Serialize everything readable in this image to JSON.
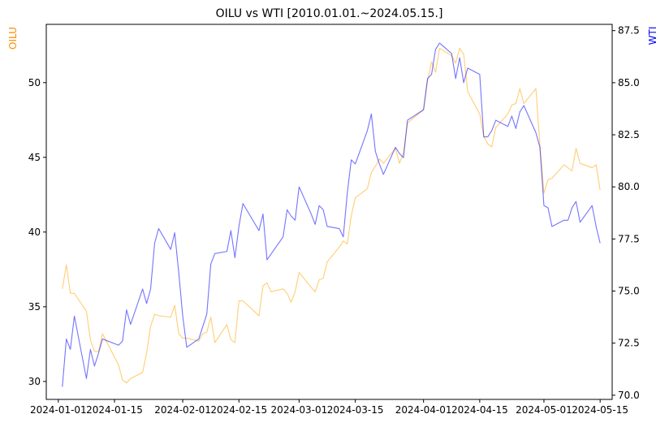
{
  "chart_data": {
    "type": "line",
    "title": "OILU vs WTI [2010.01.01.~2024.05.15.]",
    "x_range": [
      "2023-12-29",
      "2024-05-18"
    ],
    "x_ticks": [
      "2024-01-01",
      "2024-01-15",
      "2024-02-01",
      "2024-02-15",
      "2024-03-01",
      "2024-03-15",
      "2024-04-01",
      "2024-04-15",
      "2024-05-01",
      "2024-05-15"
    ],
    "left_axis": {
      "label": "OILU",
      "color": "#ff8c00",
      "ylim": [
        28.8,
        53.9
      ],
      "ticks": [
        30,
        35,
        40,
        45,
        50
      ]
    },
    "right_axis": {
      "label": "WTI",
      "color": "#0000ff",
      "ylim": [
        69.8,
        87.8
      ],
      "ticks": [
        70.0,
        72.5,
        75.0,
        77.5,
        80.0,
        82.5,
        85.0,
        87.5
      ]
    },
    "series": [
      {
        "name": "OILU",
        "axis": "left",
        "color": "#ffa500",
        "points": [
          [
            "2024-01-02",
            36.2
          ],
          [
            "2024-01-03",
            37.8
          ],
          [
            "2024-01-04",
            35.9
          ],
          [
            "2024-01-05",
            35.9
          ],
          [
            "2024-01-08",
            34.7
          ],
          [
            "2024-01-09",
            32.8
          ],
          [
            "2024-01-10",
            32.0
          ],
          [
            "2024-01-11",
            32.0
          ],
          [
            "2024-01-12",
            33.2
          ],
          [
            "2024-01-16",
            31.1
          ],
          [
            "2024-01-17",
            30.1
          ],
          [
            "2024-01-18",
            29.9
          ],
          [
            "2024-01-19",
            30.2
          ],
          [
            "2024-01-22",
            30.6
          ],
          [
            "2024-01-23",
            31.9
          ],
          [
            "2024-01-24",
            33.7
          ],
          [
            "2024-01-25",
            34.5
          ],
          [
            "2024-01-26",
            34.4
          ],
          [
            "2024-01-29",
            34.3
          ],
          [
            "2024-01-30",
            35.1
          ],
          [
            "2024-01-31",
            33.2
          ],
          [
            "2024-02-01",
            32.9
          ],
          [
            "2024-02-02",
            32.9
          ],
          [
            "2024-02-05",
            32.7
          ],
          [
            "2024-02-06",
            33.2
          ],
          [
            "2024-02-07",
            33.3
          ],
          [
            "2024-02-08",
            34.3
          ],
          [
            "2024-02-09",
            32.6
          ],
          [
            "2024-02-12",
            33.8
          ],
          [
            "2024-02-13",
            32.8
          ],
          [
            "2024-02-14",
            32.6
          ],
          [
            "2024-02-15",
            35.4
          ],
          [
            "2024-02-16",
            35.4
          ],
          [
            "2024-02-20",
            34.4
          ],
          [
            "2024-02-21",
            36.4
          ],
          [
            "2024-02-22",
            36.6
          ],
          [
            "2024-02-23",
            36.0
          ],
          [
            "2024-02-26",
            36.2
          ],
          [
            "2024-02-27",
            35.9
          ],
          [
            "2024-02-28",
            35.3
          ],
          [
            "2024-02-29",
            36.0
          ],
          [
            "2024-03-01",
            37.3
          ],
          [
            "2024-03-04",
            36.3
          ],
          [
            "2024-03-05",
            36.0
          ],
          [
            "2024-03-06",
            36.8
          ],
          [
            "2024-03-07",
            36.9
          ],
          [
            "2024-03-08",
            38.0
          ],
          [
            "2024-03-11",
            39.0
          ],
          [
            "2024-03-12",
            39.4
          ],
          [
            "2024-03-13",
            39.2
          ],
          [
            "2024-03-14",
            41.1
          ],
          [
            "2024-03-15",
            42.3
          ],
          [
            "2024-03-18",
            42.9
          ],
          [
            "2024-03-19",
            44.0
          ],
          [
            "2024-03-20",
            44.4
          ],
          [
            "2024-03-21",
            44.9
          ],
          [
            "2024-03-22",
            44.6
          ],
          [
            "2024-03-25",
            45.6
          ],
          [
            "2024-03-26",
            44.6
          ],
          [
            "2024-03-27",
            45.3
          ],
          [
            "2024-03-28",
            47.3
          ],
          [
            "2024-04-01",
            48.2
          ],
          [
            "2024-04-02",
            50.1
          ],
          [
            "2024-04-03",
            51.4
          ],
          [
            "2024-04-04",
            50.7
          ],
          [
            "2024-04-05",
            52.3
          ],
          [
            "2024-04-08",
            51.8
          ],
          [
            "2024-04-09",
            51.3
          ],
          [
            "2024-04-10",
            52.3
          ],
          [
            "2024-04-11",
            51.9
          ],
          [
            "2024-04-12",
            49.4
          ],
          [
            "2024-04-15",
            47.9
          ],
          [
            "2024-04-16",
            46.4
          ],
          [
            "2024-04-17",
            45.9
          ],
          [
            "2024-04-18",
            45.7
          ],
          [
            "2024-04-19",
            47.0
          ],
          [
            "2024-04-22",
            47.9
          ],
          [
            "2024-04-23",
            48.5
          ],
          [
            "2024-04-24",
            48.6
          ],
          [
            "2024-04-25",
            49.6
          ],
          [
            "2024-04-26",
            48.6
          ],
          [
            "2024-04-29",
            49.6
          ],
          [
            "2024-04-30",
            45.8
          ],
          [
            "2024-05-01",
            42.6
          ],
          [
            "2024-05-02",
            43.5
          ],
          [
            "2024-05-03",
            43.6
          ],
          [
            "2024-05-06",
            44.5
          ],
          [
            "2024-05-07",
            44.3
          ],
          [
            "2024-05-08",
            44.1
          ],
          [
            "2024-05-09",
            45.6
          ],
          [
            "2024-05-10",
            44.6
          ],
          [
            "2024-05-13",
            44.3
          ],
          [
            "2024-05-14",
            44.5
          ],
          [
            "2024-05-15",
            42.8
          ]
        ]
      },
      {
        "name": "WTI",
        "axis": "right",
        "color": "#0000ff",
        "points": [
          [
            "2024-01-02",
            70.4
          ],
          [
            "2024-01-03",
            72.7
          ],
          [
            "2024-01-04",
            72.2
          ],
          [
            "2024-01-05",
            73.8
          ],
          [
            "2024-01-08",
            70.8
          ],
          [
            "2024-01-09",
            72.2
          ],
          [
            "2024-01-10",
            71.4
          ],
          [
            "2024-01-11",
            72.0
          ],
          [
            "2024-01-12",
            72.7
          ],
          [
            "2024-01-16",
            72.4
          ],
          [
            "2024-01-17",
            72.6
          ],
          [
            "2024-01-18",
            74.1
          ],
          [
            "2024-01-19",
            73.4
          ],
          [
            "2024-01-22",
            75.1
          ],
          [
            "2024-01-23",
            74.4
          ],
          [
            "2024-01-24",
            75.1
          ],
          [
            "2024-01-25",
            77.3
          ],
          [
            "2024-01-26",
            78.0
          ],
          [
            "2024-01-29",
            77.0
          ],
          [
            "2024-01-30",
            77.8
          ],
          [
            "2024-01-31",
            75.9
          ],
          [
            "2024-02-01",
            73.8
          ],
          [
            "2024-02-02",
            72.3
          ],
          [
            "2024-02-05",
            72.7
          ],
          [
            "2024-02-06",
            73.3
          ],
          [
            "2024-02-07",
            73.9
          ],
          [
            "2024-02-08",
            76.3
          ],
          [
            "2024-02-09",
            76.8
          ],
          [
            "2024-02-12",
            76.9
          ],
          [
            "2024-02-13",
            77.9
          ],
          [
            "2024-02-14",
            76.6
          ],
          [
            "2024-02-15",
            78.1
          ],
          [
            "2024-02-16",
            79.2
          ],
          [
            "2024-02-20",
            77.9
          ],
          [
            "2024-02-21",
            78.7
          ],
          [
            "2024-02-22",
            76.5
          ],
          [
            "2024-02-26",
            77.6
          ],
          [
            "2024-02-27",
            78.9
          ],
          [
            "2024-02-28",
            78.6
          ],
          [
            "2024-02-29",
            78.4
          ],
          [
            "2024-03-01",
            80.0
          ],
          [
            "2024-03-04",
            78.7
          ],
          [
            "2024-03-05",
            78.2
          ],
          [
            "2024-03-06",
            79.1
          ],
          [
            "2024-03-07",
            78.9
          ],
          [
            "2024-03-08",
            78.1
          ],
          [
            "2024-03-11",
            78.0
          ],
          [
            "2024-03-12",
            77.6
          ],
          [
            "2024-03-13",
            79.7
          ],
          [
            "2024-03-14",
            81.3
          ],
          [
            "2024-03-15",
            81.1
          ],
          [
            "2024-03-18",
            82.7
          ],
          [
            "2024-03-19",
            83.5
          ],
          [
            "2024-03-20",
            81.7
          ],
          [
            "2024-03-21",
            81.1
          ],
          [
            "2024-03-22",
            80.6
          ],
          [
            "2024-03-25",
            81.9
          ],
          [
            "2024-03-26",
            81.6
          ],
          [
            "2024-03-27",
            81.4
          ],
          [
            "2024-03-28",
            83.2
          ],
          [
            "2024-04-01",
            83.7
          ],
          [
            "2024-04-02",
            85.2
          ],
          [
            "2024-04-03",
            85.4
          ],
          [
            "2024-04-04",
            86.6
          ],
          [
            "2024-04-05",
            86.9
          ],
          [
            "2024-04-08",
            86.4
          ],
          [
            "2024-04-09",
            85.2
          ],
          [
            "2024-04-10",
            86.2
          ],
          [
            "2024-04-11",
            85.0
          ],
          [
            "2024-04-12",
            85.7
          ],
          [
            "2024-04-15",
            85.4
          ],
          [
            "2024-04-16",
            82.4
          ],
          [
            "2024-04-17",
            82.4
          ],
          [
            "2024-04-18",
            82.7
          ],
          [
            "2024-04-19",
            83.2
          ],
          [
            "2024-04-22",
            82.9
          ],
          [
            "2024-04-23",
            83.4
          ],
          [
            "2024-04-24",
            82.8
          ],
          [
            "2024-04-25",
            83.6
          ],
          [
            "2024-04-26",
            83.9
          ],
          [
            "2024-04-29",
            82.6
          ],
          [
            "2024-04-30",
            81.9
          ],
          [
            "2024-05-01",
            79.1
          ],
          [
            "2024-05-02",
            79.0
          ],
          [
            "2024-05-03",
            78.1
          ],
          [
            "2024-05-06",
            78.4
          ],
          [
            "2024-05-07",
            78.4
          ],
          [
            "2024-05-08",
            79.0
          ],
          [
            "2024-05-09",
            79.3
          ],
          [
            "2024-05-10",
            78.3
          ],
          [
            "2024-05-13",
            79.1
          ],
          [
            "2024-05-14",
            78.1
          ],
          [
            "2024-05-15",
            77.3
          ]
        ]
      }
    ],
    "grid": false,
    "legend": "none"
  }
}
